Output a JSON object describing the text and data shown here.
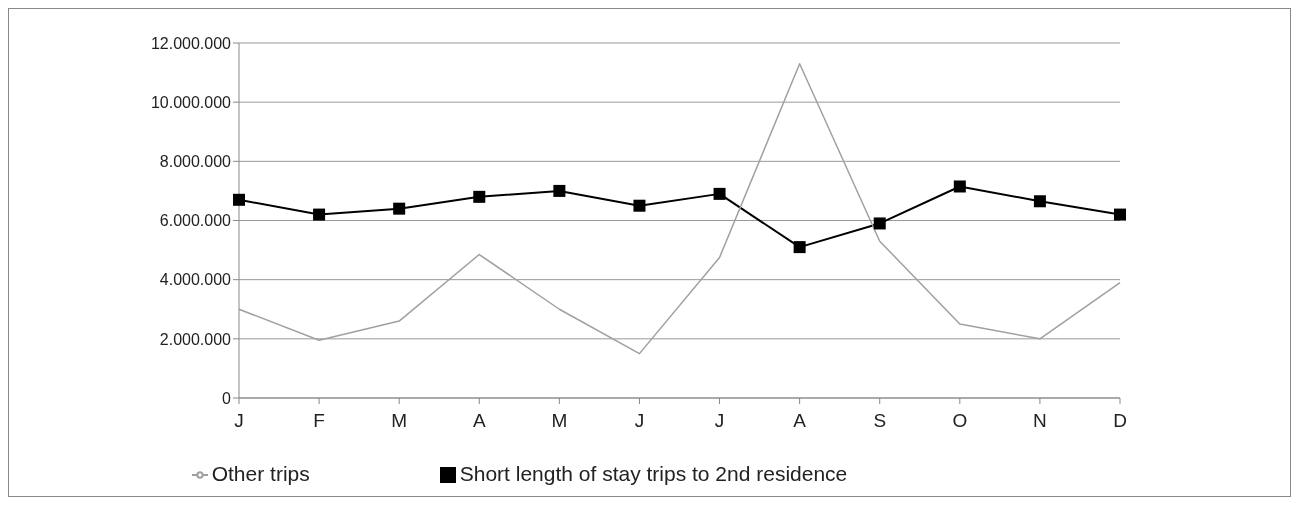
{
  "chart_data": {
    "type": "line",
    "categories": [
      "J",
      "F",
      "M",
      "A",
      "M",
      "J",
      "J",
      "A",
      "S",
      "O",
      "N",
      "D"
    ],
    "series": [
      {
        "name": "Short length of stay trips to 2nd residence",
        "color": "#000000",
        "marker": "square",
        "values": [
          6700000,
          6200000,
          6400000,
          6800000,
          7000000,
          6500000,
          6900000,
          5100000,
          5900000,
          7150000,
          6650000,
          6200000
        ]
      },
      {
        "name": "Other trips",
        "color": "#a0a0a0",
        "marker": "none",
        "values": [
          3000000,
          1950000,
          2600000,
          4850000,
          3000000,
          1500000,
          4750000,
          11300000,
          5300000,
          2500000,
          2000000,
          3900000
        ]
      }
    ],
    "ylim": [
      0,
      12000000
    ],
    "yticks": [
      {
        "value": 0,
        "label": "0"
      },
      {
        "value": 2000000,
        "label": "2.000.000"
      },
      {
        "value": 4000000,
        "label": "4.000.000"
      },
      {
        "value": 6000000,
        "label": "6.000.000"
      },
      {
        "value": 8000000,
        "label": "8.000.000"
      },
      {
        "value": 10000000,
        "label": "10.000.000"
      },
      {
        "value": 12000000,
        "label": "12.000.000"
      }
    ],
    "grid": "y",
    "legend": "bottom"
  }
}
